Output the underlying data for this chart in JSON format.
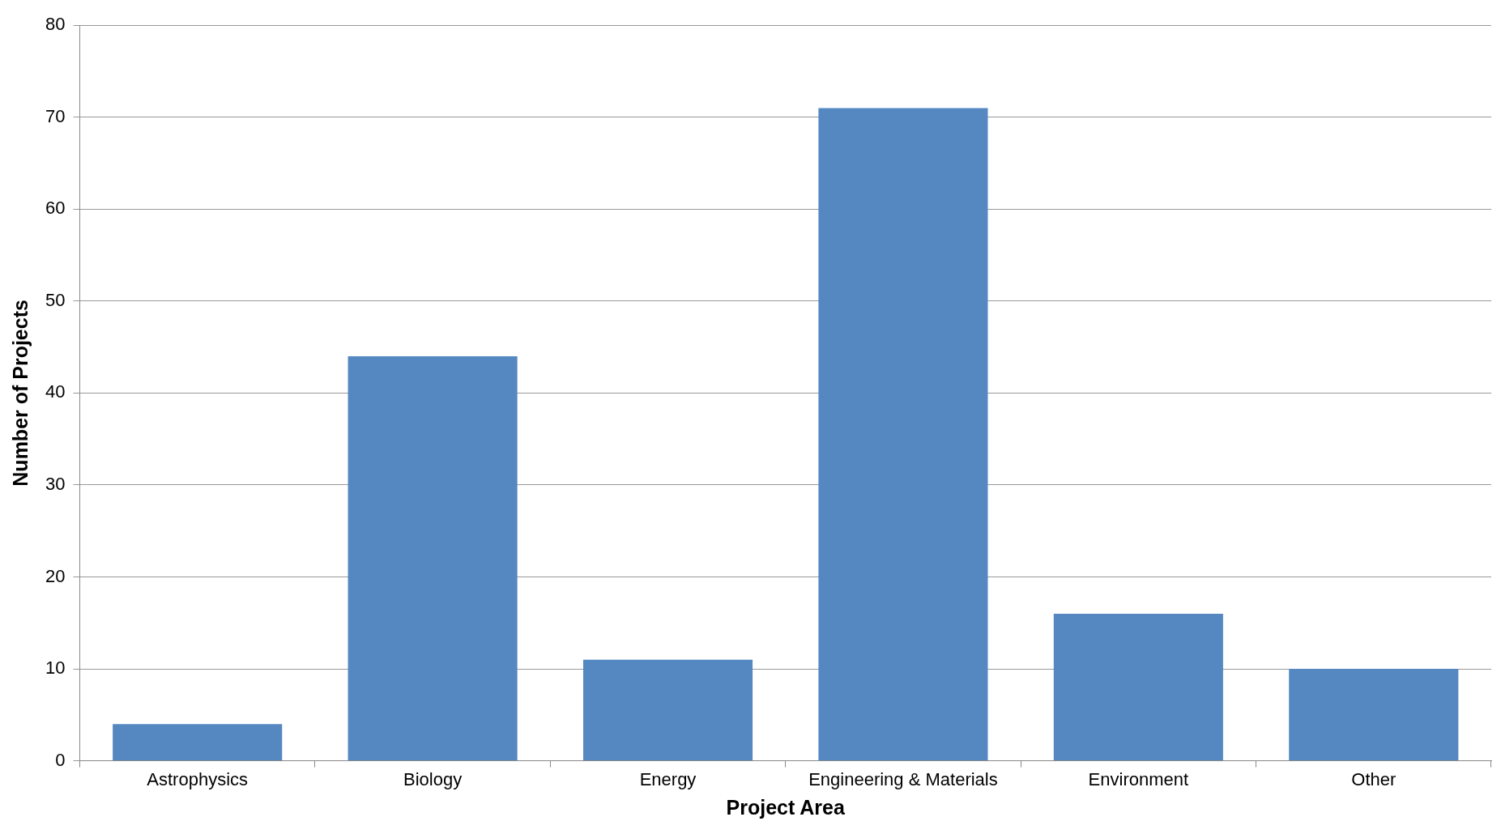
{
  "chart_data": {
    "type": "bar",
    "xlabel": "Project Area",
    "ylabel": "Number of Projects",
    "categories": [
      "Astrophysics",
      "Biology",
      "Energy",
      "Engineering & Materials",
      "Environment",
      "Other"
    ],
    "values": [
      4,
      44,
      11,
      71,
      16,
      10
    ],
    "color": "#5588c1",
    "ylim": [
      0,
      80
    ],
    "yticks": [
      0,
      10,
      20,
      30,
      40,
      50,
      60,
      70,
      80
    ],
    "grid": "y",
    "legend": false
  }
}
